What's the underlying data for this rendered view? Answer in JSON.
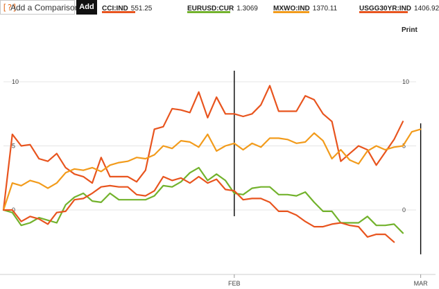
{
  "toolbar": {
    "help_glyph": "[?]",
    "compare_placeholder": "Add a Comparison",
    "add_label": "Add"
  },
  "legend": [
    {
      "name": "CCI:IND",
      "value": "551.25",
      "color": "#e8541e"
    },
    {
      "name": "EURUSD:CUR",
      "value": "1.3069",
      "color": "#72b22c"
    },
    {
      "name": "MXWO:IND",
      "value": "1370.11",
      "color": "#f29b1b"
    },
    {
      "name": "USGG30YR:IND",
      "value": "1406.92",
      "color": "#e8541e"
    }
  ],
  "print_label": "Print",
  "chart_data": {
    "type": "line",
    "ylim": [
      -5,
      14
    ],
    "y_ticks_left": [
      "10",
      "5",
      "0"
    ],
    "y_ticks_right": [
      "10",
      "5",
      "0"
    ],
    "y_tick_values": [
      10,
      5,
      0
    ],
    "x_labels": [
      {
        "label": "FEB",
        "index": 26
      },
      {
        "label": "MAR",
        "index": 47
      }
    ],
    "markers": [
      26,
      47
    ],
    "series": [
      {
        "name": "USGG30YR:IND",
        "color": "#e8541e",
        "values": [
          0,
          5.9,
          5.0,
          5.1,
          4.0,
          3.8,
          4.4,
          3.3,
          2.8,
          2.6,
          2.1,
          4.1,
          2.6,
          2.6,
          2.6,
          2.2,
          3.1,
          6.3,
          6.5,
          7.9,
          7.8,
          7.6,
          9.2,
          7.2,
          8.8,
          7.5,
          7.5,
          7.3,
          7.5,
          8.2,
          9.7,
          7.7,
          7.7,
          7.7,
          8.9,
          8.6,
          7.5,
          6.9,
          3.8,
          4.4,
          5.0,
          4.7,
          3.5,
          4.5,
          5.5,
          6.9
        ]
      },
      {
        "name": "MXWO:IND",
        "color": "#f29b1b",
        "values": [
          0,
          2.1,
          1.9,
          2.3,
          2.1,
          1.7,
          2.1,
          2.9,
          3.2,
          3.1,
          3.3,
          3.0,
          3.5,
          3.7,
          3.8,
          4.1,
          4.0,
          4.3,
          5.0,
          4.8,
          5.4,
          5.3,
          4.9,
          5.9,
          4.6,
          5.0,
          5.2,
          4.7,
          5.2,
          4.9,
          5.6,
          5.6,
          5.5,
          5.2,
          5.3,
          6.0,
          5.4,
          4.0,
          4.7,
          3.9,
          3.6,
          4.6,
          5.0,
          4.7,
          4.9,
          5.0,
          6.1,
          6.3
        ]
      },
      {
        "name": "EURUSD:CUR",
        "color": "#72b22c",
        "values": [
          0,
          -0.2,
          -1.2,
          -1.0,
          -0.6,
          -0.8,
          -1.0,
          0.4,
          1.0,
          1.3,
          0.7,
          0.6,
          1.3,
          0.8,
          0.8,
          0.8,
          0.8,
          1.1,
          1.9,
          1.8,
          2.2,
          2.9,
          3.3,
          2.3,
          2.8,
          2.3,
          1.3,
          1.2,
          1.7,
          1.8,
          1.8,
          1.2,
          1.2,
          1.1,
          1.4,
          0.6,
          -0.1,
          -0.1,
          -1.0,
          -1.0,
          -1.0,
          -0.5,
          -1.2,
          -1.2,
          -1.1,
          -1.8
        ]
      },
      {
        "name": "CCI:IND",
        "color": "#e8541e",
        "values": [
          0,
          0.0,
          -0.9,
          -0.5,
          -0.7,
          -1.1,
          -0.2,
          -0.1,
          0.8,
          0.9,
          1.3,
          1.8,
          1.9,
          1.8,
          1.8,
          1.2,
          1.1,
          1.5,
          2.6,
          2.3,
          2.5,
          2.1,
          2.6,
          2.1,
          2.4,
          1.6,
          1.5,
          0.8,
          0.9,
          0.9,
          0.6,
          -0.1,
          -0.1,
          -0.4,
          -0.9,
          -1.3,
          -1.3,
          -1.1,
          -1.0,
          -1.2,
          -1.3,
          -2.1,
          -1.9,
          -1.9,
          -2.5
        ]
      }
    ]
  }
}
